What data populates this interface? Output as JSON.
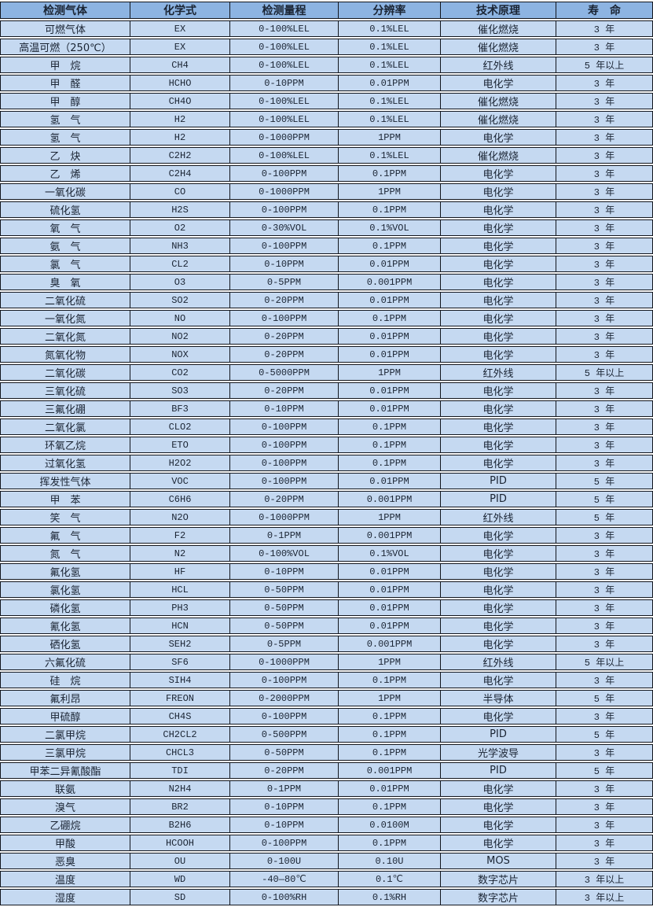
{
  "colors": {
    "header_bg": "#8DB4E2",
    "row_bg": "#C5D9F1",
    "border": "#12161E",
    "text": "#1A2433",
    "gap": "#FFFFFF"
  },
  "table": {
    "headers": [
      "检测气体",
      "化学式",
      "检测量程",
      "分辨率",
      "技术原理",
      "寿　命"
    ],
    "rows": [
      [
        "可燃气体",
        "EX",
        "0-100%LEL",
        "0.1%LEL",
        "催化燃烧",
        "3 年"
      ],
      [
        "高温可燃（250℃）",
        "EX",
        "0-100%LEL",
        "0.1%LEL",
        "催化燃烧",
        "3 年"
      ],
      [
        "甲　烷",
        "CH4",
        "0-100%LEL",
        "0.1%LEL",
        "红外线",
        "5 年以上"
      ],
      [
        "甲　醛",
        "HCHO",
        "0-10PPM",
        "0.01PPM",
        "电化学",
        "3 年"
      ],
      [
        "甲　醇",
        "CH4O",
        "0-100%LEL",
        "0.1%LEL",
        "催化燃烧",
        "3 年"
      ],
      [
        "氢　气",
        "H2",
        "0-100%LEL",
        "0.1%LEL",
        "催化燃烧",
        "3 年"
      ],
      [
        "氢　气",
        "H2",
        "0-1000PPM",
        "1PPM",
        "电化学",
        "3 年"
      ],
      [
        "乙　炔",
        "C2H2",
        "0-100%LEL",
        "0.1%LEL",
        "催化燃烧",
        "3 年"
      ],
      [
        "乙　烯",
        "C2H4",
        "0-100PPM",
        "0.1PPM",
        "电化学",
        "3 年"
      ],
      [
        "一氧化碳",
        "CO",
        "0-1000PPM",
        "1PPM",
        "电化学",
        "3 年"
      ],
      [
        "硫化氢",
        "H2S",
        "0-100PPM",
        "0.1PPM",
        "电化学",
        "3 年"
      ],
      [
        "氧　气",
        "O2",
        "0-30%VOL",
        "0.1%VOL",
        "电化学",
        "3 年"
      ],
      [
        "氨　气",
        "NH3",
        "0-100PPM",
        "0.1PPM",
        "电化学",
        "3 年"
      ],
      [
        "氯　气",
        "CL2",
        "0-10PPM",
        "0.01PPM",
        "电化学",
        "3 年"
      ],
      [
        "臭　氧",
        "O3",
        "0-5PPM",
        "0.001PPM",
        "电化学",
        "3 年"
      ],
      [
        "二氧化硫",
        "SO2",
        "0-20PPM",
        "0.01PPM",
        "电化学",
        "3 年"
      ],
      [
        "一氧化氮",
        "NO",
        "0-100PPM",
        "0.1PPM",
        "电化学",
        "3 年"
      ],
      [
        "二氧化氮",
        "NO2",
        "0-20PPM",
        "0.01PPM",
        "电化学",
        "3 年"
      ],
      [
        "氮氧化物",
        "NOX",
        "0-20PPM",
        "0.01PPM",
        "电化学",
        "3 年"
      ],
      [
        "二氧化碳",
        "CO2",
        "0-5000PPM",
        "1PPM",
        "红外线",
        "5 年以上"
      ],
      [
        "三氧化硫",
        "SO3",
        "0-20PPM",
        "0.01PPM",
        "电化学",
        "3 年"
      ],
      [
        "三氟化硼",
        "BF3",
        "0-10PPM",
        "0.01PPM",
        "电化学",
        "3 年"
      ],
      [
        "二氧化氯",
        "CLO2",
        "0-100PPM",
        "0.1PPM",
        "电化学",
        "3 年"
      ],
      [
        "环氧乙烷",
        "ETO",
        "0-100PPM",
        "0.1PPM",
        "电化学",
        "3 年"
      ],
      [
        "过氧化氢",
        "H2O2",
        "0-100PPM",
        "0.1PPM",
        "电化学",
        "3 年"
      ],
      [
        "挥发性气体",
        "VOC",
        "0-100PPM",
        "0.01PPM",
        "PID",
        "5 年"
      ],
      [
        "甲　苯",
        "C6H6",
        "0-20PPM",
        "0.001PPM",
        "PID",
        "5 年"
      ],
      [
        "笑　气",
        "N2O",
        "0-1000PPM",
        "1PPM",
        "红外线",
        "5 年"
      ],
      [
        "氟　气",
        "F2",
        "0-1PPM",
        "0.001PPM",
        "电化学",
        "3 年"
      ],
      [
        "氮　气",
        "N2",
        "0-100%VOL",
        "0.1%VOL",
        "电化学",
        "3 年"
      ],
      [
        "氟化氢",
        "HF",
        "0-10PPM",
        "0.01PPM",
        "电化学",
        "3 年"
      ],
      [
        "氯化氢",
        "HCL",
        "0-50PPM",
        "0.01PPM",
        "电化学",
        "3 年"
      ],
      [
        "磷化氢",
        "PH3",
        "0-50PPM",
        "0.01PPM",
        "电化学",
        "3 年"
      ],
      [
        "氰化氢",
        "HCN",
        "0-50PPM",
        "0.01PPM",
        "电化学",
        "3 年"
      ],
      [
        "硒化氢",
        "SEH2",
        "0-5PPM",
        "0.001PPM",
        "电化学",
        "3 年"
      ],
      [
        "六氟化硫",
        "SF6",
        "0-1000PPM",
        "1PPM",
        "红外线",
        "5 年以上"
      ],
      [
        "硅　烷",
        "SIH4",
        "0-100PPM",
        "0.1PPM",
        "电化学",
        "3 年"
      ],
      [
        "氟利昂",
        "FREON",
        "0-2000PPM",
        "1PPM",
        "半导体",
        "5 年"
      ],
      [
        "甲硫醇",
        "CH4S",
        "0-100PPM",
        "0.1PPM",
        "电化学",
        "3 年"
      ],
      [
        "二氯甲烷",
        "CH2CL2",
        "0-500PPM",
        "0.1PPM",
        "PID",
        "5 年"
      ],
      [
        "三氯甲烷",
        "CHCL3",
        "0-50PPM",
        "0.1PPM",
        "光学波导",
        "3 年"
      ],
      [
        "甲苯二异氰酸酯",
        "TDI",
        "0-20PPM",
        "0.001PPM",
        "PID",
        "5 年"
      ],
      [
        "联氨",
        "N2H4",
        "0-1PPM",
        "0.01PPM",
        "电化学",
        "3 年"
      ],
      [
        "溴气",
        "BR2",
        "0-10PPM",
        "0.1PPM",
        "电化学",
        "3 年"
      ],
      [
        "乙硼烷",
        "B2H6",
        "0-10PPM",
        "0.0100M",
        "电化学",
        "3 年"
      ],
      [
        "甲酸",
        "HCOOH",
        "0-100PPM",
        "0.1PPM",
        "电化学",
        "3 年"
      ],
      [
        "恶臭",
        "OU",
        "0-100U",
        "0.10U",
        "MOS",
        "3 年"
      ],
      [
        "温度",
        "WD",
        "-40—80℃",
        "0.1℃",
        "数字芯片",
        "3 年以上"
      ],
      [
        "湿度",
        "SD",
        "0-100%RH",
        "0.1%RH",
        "数字芯片",
        "3 年以上"
      ]
    ]
  }
}
